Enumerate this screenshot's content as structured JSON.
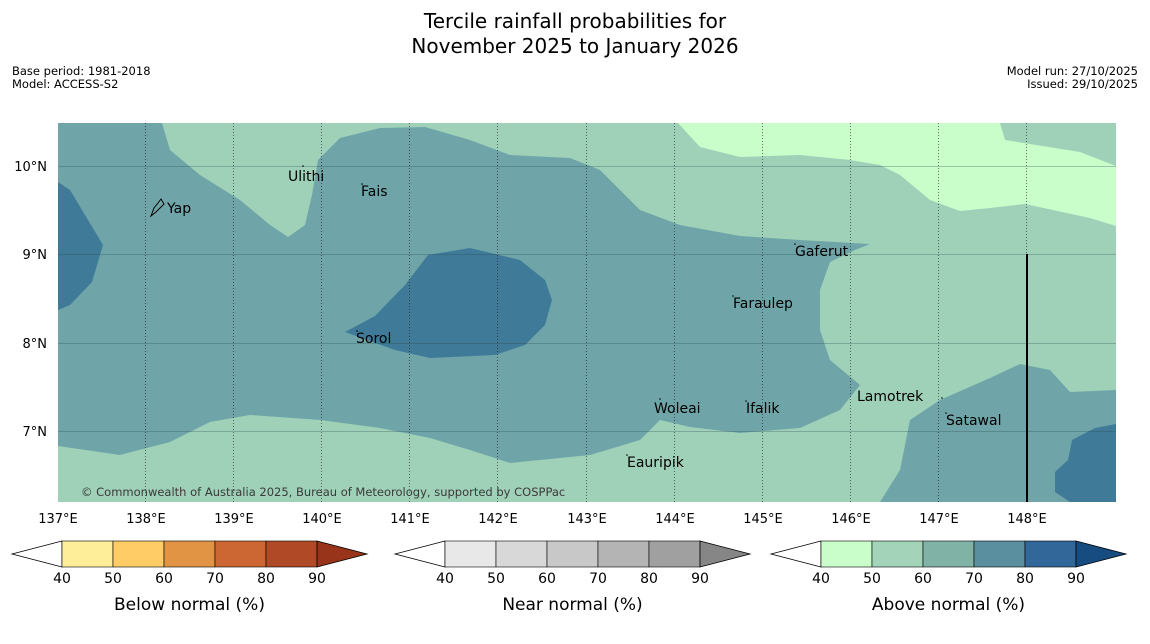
{
  "title": {
    "line1": "Tercile rainfall probabilities for",
    "line2": "November 2025 to January 2026"
  },
  "meta": {
    "base_period": "Base period: 1981-2018",
    "model": "Model: ACCESS-S2",
    "model_run": "Model run: 27/10/2025",
    "issued": "Issued: 29/10/2025"
  },
  "copyright": "© Commonwealth of Australia 2025, Bureau of Meteorology, supported by COSPPac",
  "axes": {
    "lon_labels": [
      "137°E",
      "138°E",
      "139°E",
      "140°E",
      "141°E",
      "142°E",
      "143°E",
      "144°E",
      "145°E",
      "146°E",
      "147°E",
      "148°E"
    ],
    "lat_labels": [
      "10°N",
      "9°N",
      "8°N",
      "7°N"
    ]
  },
  "places": [
    {
      "name": "Yap"
    },
    {
      "name": "Ulithi"
    },
    {
      "name": "Fais"
    },
    {
      "name": "Gaferut"
    },
    {
      "name": "Faraulep"
    },
    {
      "name": "Sorol"
    },
    {
      "name": "Lamotrek"
    },
    {
      "name": "Woleai"
    },
    {
      "name": "Ifalik"
    },
    {
      "name": "Satawal"
    },
    {
      "name": "Eauripik"
    }
  ],
  "colors": {
    "above_50": "#9fd1b8",
    "above_60": "#6fa5a8",
    "above_70": "#3f7a98",
    "above_40": "#c9fdc9"
  },
  "legends": [
    {
      "label": "Below normal (%)",
      "ticks": [
        "40",
        "50",
        "60",
        "70",
        "80",
        "90"
      ],
      "colors": [
        "#ffffff",
        "#ffee99",
        "#ffcc66",
        "#e09444",
        "#cc6633",
        "#b04a26",
        "#983419"
      ]
    },
    {
      "label": "Near normal (%)",
      "ticks": [
        "40",
        "50",
        "60",
        "70",
        "80",
        "90"
      ],
      "colors": [
        "#ffffff",
        "#e8e8e8",
        "#d8d8d8",
        "#c8c8c8",
        "#b4b4b4",
        "#a0a0a0",
        "#868686"
      ]
    },
    {
      "label": "Above normal (%)",
      "ticks": [
        "40",
        "50",
        "60",
        "70",
        "80",
        "90"
      ],
      "colors": [
        "#ffffff",
        "#c9fdc9",
        "#a3d4b9",
        "#80b3a6",
        "#5a8f9f",
        "#326899",
        "#164c80"
      ]
    }
  ]
}
